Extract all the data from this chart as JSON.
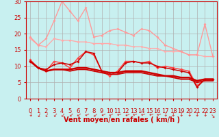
{
  "xlabel": "Vent moyen/en rafales ( km/h )",
  "background_color": "#c8f0f0",
  "grid_color": "#b0b0b0",
  "xlim": [
    -0.5,
    23.5
  ],
  "ylim": [
    0,
    30
  ],
  "yticks": [
    0,
    5,
    10,
    15,
    20,
    25,
    30
  ],
  "xticks": [
    0,
    1,
    2,
    3,
    4,
    5,
    6,
    7,
    8,
    9,
    10,
    11,
    12,
    13,
    14,
    15,
    16,
    17,
    18,
    19,
    20,
    21,
    22,
    23
  ],
  "series": [
    {
      "y": [
        18.5,
        16.5,
        16.0,
        18.5,
        18.0,
        18.0,
        17.5,
        17.5,
        17.0,
        17.0,
        17.0,
        16.5,
        16.5,
        16.0,
        16.0,
        15.5,
        15.5,
        14.5,
        14.5,
        14.5,
        13.5,
        13.5,
        13.0,
        13.0
      ],
      "color": "#ffaaaa",
      "lw": 1.0,
      "marker": "D",
      "ms": 2.0
    },
    {
      "y": [
        19.0,
        16.5,
        18.5,
        24.0,
        30.0,
        27.0,
        24.0,
        28.0,
        19.0,
        19.5,
        21.0,
        21.5,
        20.5,
        19.5,
        21.5,
        21.0,
        19.0,
        16.5,
        15.5,
        14.5,
        13.5,
        13.5,
        23.0,
        13.0
      ],
      "color": "#ff9999",
      "lw": 1.0,
      "marker": "D",
      "ms": 2.0
    },
    {
      "y": [
        12.0,
        9.5,
        8.5,
        11.5,
        11.0,
        9.5,
        12.5,
        14.5,
        13.5,
        8.5,
        7.0,
        8.5,
        11.5,
        11.5,
        11.0,
        11.5,
        9.5,
        10.0,
        9.5,
        9.0,
        8.5,
        4.0,
        6.0,
        6.0
      ],
      "color": "#ff4444",
      "lw": 1.1,
      "marker": "D",
      "ms": 2.0
    },
    {
      "y": [
        11.5,
        9.5,
        9.0,
        10.5,
        11.0,
        10.5,
        11.5,
        14.5,
        14.0,
        8.5,
        8.0,
        8.0,
        11.0,
        11.5,
        11.0,
        11.0,
        10.0,
        9.5,
        9.0,
        8.5,
        8.0,
        3.5,
        6.0,
        6.0
      ],
      "color": "#cc0000",
      "lw": 1.1,
      "marker": "D",
      "ms": 2.0
    },
    {
      "y": [
        11.5,
        9.5,
        8.5,
        9.0,
        9.0,
        9.0,
        9.5,
        9.5,
        9.0,
        8.5,
        8.0,
        8.0,
        8.5,
        8.5,
        8.5,
        8.0,
        7.5,
        7.0,
        7.0,
        6.5,
        6.5,
        5.5,
        6.0,
        6.0
      ],
      "color": "#cc0000",
      "lw": 1.8,
      "marker": null,
      "ms": 0
    },
    {
      "y": [
        11.5,
        9.5,
        8.5,
        9.0,
        9.0,
        8.5,
        9.0,
        9.0,
        8.5,
        8.0,
        7.5,
        7.5,
        8.0,
        8.0,
        8.0,
        7.5,
        7.0,
        7.0,
        6.5,
        6.0,
        6.0,
        5.0,
        5.5,
        5.5
      ],
      "color": "#cc0000",
      "lw": 1.3,
      "marker": null,
      "ms": 0
    }
  ],
  "arrow_color": "#cc0000",
  "xlabel_color": "#cc0000",
  "xlabel_fontsize": 7,
  "tick_label_color": "#cc0000",
  "tick_label_fontsize": 6
}
